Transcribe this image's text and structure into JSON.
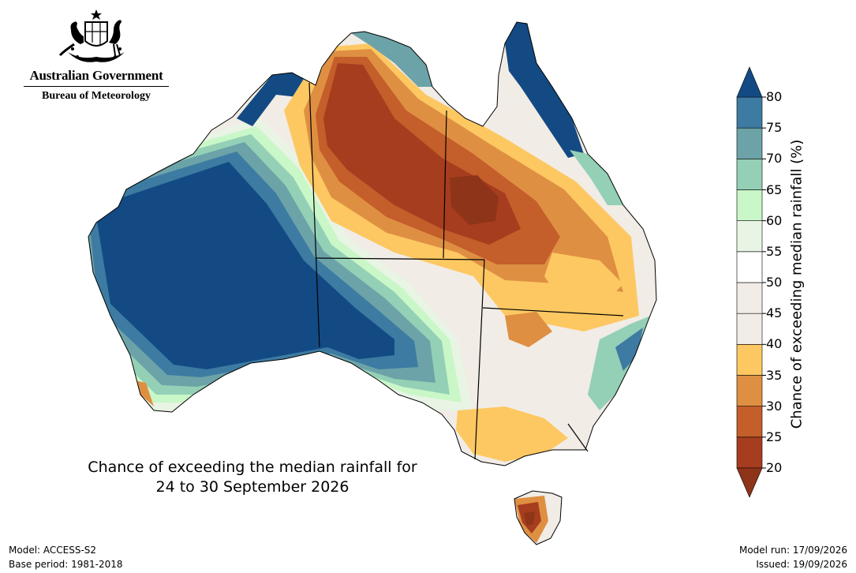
{
  "logo": {
    "government": "Australian Government",
    "bureau": "Bureau of Meteorology",
    "emblem_icon": "coat-of-arms-icon"
  },
  "map": {
    "title_line1": "Chance of exceeding the median rainfall for",
    "title_line2": "24 to 30 September 2026"
  },
  "footer": {
    "model": "Model: ACCESS-S2",
    "base_period": "Base period: 1981-2018",
    "model_run": "Model run: 17/09/2026",
    "issued": "Issued: 19/09/2026"
  },
  "legend": {
    "title": "Chance of exceeding median rainfall (%)",
    "levels": [
      "20",
      "25",
      "30",
      "35",
      "40",
      "45",
      "50",
      "55",
      "60",
      "65",
      "70",
      "75",
      "80"
    ],
    "colors": [
      "#a63d1e",
      "#c45e2a",
      "#df8f42",
      "#fdc862",
      "#f1ece5",
      "#ffffff",
      "#ffffff",
      "#e8f4e4",
      "#c9f7c8",
      "#94d0b6",
      "#6ba3a8",
      "#3d7ba2",
      "#134a83"
    ],
    "under_color": "#8e3419",
    "over_color": "#134a83"
  },
  "boundary_color": "#000000"
}
